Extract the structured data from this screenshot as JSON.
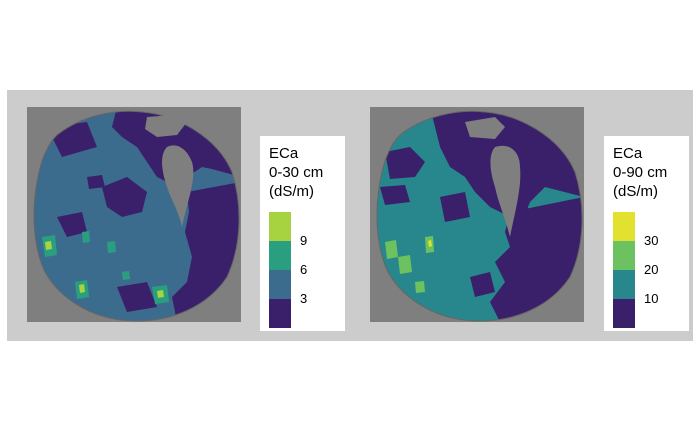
{
  "maps": [
    {
      "id": "shallow",
      "legend": {
        "title_lines": [
          "ECa",
          "0-30 cm",
          "(dS/m)"
        ],
        "colors": [
          "#3a1f6b",
          "#3b6c8e",
          "#2a9f80",
          "#a6d33f"
        ],
        "tick_labels": [
          "3",
          "6",
          "9"
        ],
        "base_color": "#3b6c8e",
        "low_color": "#3a1f6b"
      }
    },
    {
      "id": "deep",
      "legend": {
        "title_lines": [
          "ECa",
          "0-90 cm",
          "(dS/m)"
        ],
        "colors": [
          "#3a1f6b",
          "#27878c",
          "#6cc25e",
          "#e2e130"
        ],
        "tick_labels": [
          "10",
          "20",
          "30"
        ],
        "base_color": "#27878c",
        "low_color": "#3a1f6b"
      }
    }
  ]
}
